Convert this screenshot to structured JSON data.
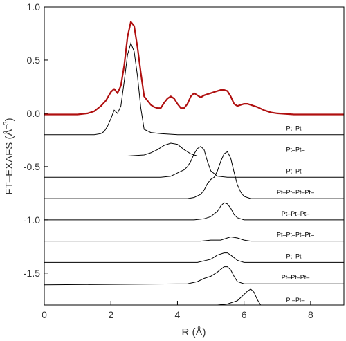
{
  "chart_data": {
    "type": "line",
    "xlabel": "R (Å)",
    "ylabel": "FT–EXAFS (Å",
    "ylabel_sup": "–3",
    "ylabel_close": ")",
    "xlim": [
      0,
      9
    ],
    "ylim": [
      -1.8,
      1.0
    ],
    "xticks": [
      0,
      2,
      4,
      6,
      8
    ],
    "xtick_labels": [
      "0",
      "2",
      "4",
      "6",
      "8"
    ],
    "yticks": [
      1.0,
      0.5,
      0.0,
      -0.5,
      -1.0,
      -1.5
    ],
    "ytick_labels": [
      "1.0",
      "0.5",
      "0.0",
      "-0.5",
      "-1.0",
      "-1.5"
    ],
    "grid": false,
    "colors": {
      "total": "#b01010",
      "component": "#000000",
      "axis": "#000000"
    },
    "total": {
      "points": [
        [
          0.0,
          -0.01
        ],
        [
          0.5,
          -0.01
        ],
        [
          1.0,
          -0.01
        ],
        [
          1.3,
          0.0
        ],
        [
          1.5,
          0.02
        ],
        [
          1.7,
          0.07
        ],
        [
          1.85,
          0.12
        ],
        [
          2.0,
          0.2
        ],
        [
          2.1,
          0.23
        ],
        [
          2.2,
          0.19
        ],
        [
          2.3,
          0.26
        ],
        [
          2.4,
          0.45
        ],
        [
          2.5,
          0.72
        ],
        [
          2.6,
          0.86
        ],
        [
          2.7,
          0.82
        ],
        [
          2.8,
          0.62
        ],
        [
          2.9,
          0.38
        ],
        [
          3.0,
          0.16
        ],
        [
          3.1,
          0.12
        ],
        [
          3.2,
          0.08
        ],
        [
          3.3,
          0.06
        ],
        [
          3.4,
          0.05
        ],
        [
          3.5,
          0.05
        ],
        [
          3.6,
          0.1
        ],
        [
          3.7,
          0.14
        ],
        [
          3.8,
          0.16
        ],
        [
          3.9,
          0.14
        ],
        [
          4.0,
          0.09
        ],
        [
          4.1,
          0.05
        ],
        [
          4.2,
          0.05
        ],
        [
          4.3,
          0.09
        ],
        [
          4.4,
          0.16
        ],
        [
          4.5,
          0.19
        ],
        [
          4.6,
          0.17
        ],
        [
          4.7,
          0.15
        ],
        [
          4.8,
          0.17
        ],
        [
          4.9,
          0.18
        ],
        [
          5.0,
          0.19
        ],
        [
          5.1,
          0.2
        ],
        [
          5.2,
          0.21
        ],
        [
          5.3,
          0.22
        ],
        [
          5.4,
          0.22
        ],
        [
          5.5,
          0.21
        ],
        [
          5.6,
          0.16
        ],
        [
          5.7,
          0.09
        ],
        [
          5.8,
          0.07
        ],
        [
          5.9,
          0.08
        ],
        [
          6.0,
          0.09
        ],
        [
          6.1,
          0.09
        ],
        [
          6.2,
          0.08
        ],
        [
          6.3,
          0.07
        ],
        [
          6.4,
          0.06
        ],
        [
          6.6,
          0.03
        ],
        [
          6.8,
          0.01
        ],
        [
          7.0,
          0.0
        ],
        [
          7.5,
          -0.01
        ],
        [
          8.0,
          -0.01
        ],
        [
          9.0,
          -0.01
        ]
      ]
    },
    "components": [
      {
        "label": "Pt–Pt–",
        "baseline": -0.2,
        "points": [
          [
            0.0,
            -0.2
          ],
          [
            1.5,
            -0.2
          ],
          [
            1.7,
            -0.19
          ],
          [
            1.8,
            -0.17
          ],
          [
            1.9,
            -0.12
          ],
          [
            2.0,
            -0.05
          ],
          [
            2.1,
            0.03
          ],
          [
            2.2,
            0.0
          ],
          [
            2.3,
            0.07
          ],
          [
            2.4,
            0.3
          ],
          [
            2.5,
            0.55
          ],
          [
            2.6,
            0.66
          ],
          [
            2.7,
            0.58
          ],
          [
            2.8,
            0.35
          ],
          [
            2.9,
            0.05
          ],
          [
            3.0,
            -0.15
          ],
          [
            3.2,
            -0.18
          ],
          [
            3.5,
            -0.19
          ],
          [
            4.0,
            -0.2
          ],
          [
            9.0,
            -0.2
          ]
        ]
      },
      {
        "label": "Pt–Pt–",
        "baseline": -0.4,
        "points": [
          [
            0.0,
            -0.4
          ],
          [
            2.5,
            -0.4
          ],
          [
            3.0,
            -0.39
          ],
          [
            3.2,
            -0.37
          ],
          [
            3.4,
            -0.34
          ],
          [
            3.6,
            -0.3
          ],
          [
            3.8,
            -0.28
          ],
          [
            4.0,
            -0.29
          ],
          [
            4.2,
            -0.34
          ],
          [
            4.4,
            -0.38
          ],
          [
            4.6,
            -0.4
          ],
          [
            9.0,
            -0.4
          ]
        ]
      },
      {
        "label": "Pt–Pt–",
        "baseline": -0.6,
        "points": [
          [
            0.0,
            -0.6
          ],
          [
            3.5,
            -0.6
          ],
          [
            3.8,
            -0.59
          ],
          [
            4.0,
            -0.56
          ],
          [
            4.2,
            -0.53
          ],
          [
            4.3,
            -0.5
          ],
          [
            4.4,
            -0.45
          ],
          [
            4.5,
            -0.38
          ],
          [
            4.6,
            -0.33
          ],
          [
            4.7,
            -0.31
          ],
          [
            4.8,
            -0.34
          ],
          [
            4.9,
            -0.45
          ],
          [
            5.0,
            -0.54
          ],
          [
            5.2,
            -0.59
          ],
          [
            5.5,
            -0.6
          ],
          [
            9.0,
            -0.6
          ]
        ]
      },
      {
        "label": "Pt–Pt–Pt–Pt–",
        "baseline": -0.8,
        "points": [
          [
            0.0,
            -0.8
          ],
          [
            4.3,
            -0.8
          ],
          [
            4.5,
            -0.79
          ],
          [
            4.7,
            -0.76
          ],
          [
            4.8,
            -0.72
          ],
          [
            4.9,
            -0.66
          ],
          [
            5.0,
            -0.62
          ],
          [
            5.1,
            -0.6
          ],
          [
            5.2,
            -0.54
          ],
          [
            5.3,
            -0.45
          ],
          [
            5.4,
            -0.38
          ],
          [
            5.5,
            -0.36
          ],
          [
            5.6,
            -0.42
          ],
          [
            5.7,
            -0.55
          ],
          [
            5.8,
            -0.67
          ],
          [
            5.9,
            -0.74
          ],
          [
            6.0,
            -0.78
          ],
          [
            6.2,
            -0.8
          ],
          [
            9.0,
            -0.8
          ]
        ]
      },
      {
        "label": "Pt–Pt–Pt–",
        "baseline": -1.0,
        "points": [
          [
            0.0,
            -1.0
          ],
          [
            4.5,
            -1.0
          ],
          [
            4.8,
            -0.99
          ],
          [
            5.0,
            -0.97
          ],
          [
            5.2,
            -0.92
          ],
          [
            5.3,
            -0.87
          ],
          [
            5.4,
            -0.84
          ],
          [
            5.5,
            -0.85
          ],
          [
            5.6,
            -0.89
          ],
          [
            5.7,
            -0.95
          ],
          [
            5.8,
            -0.98
          ],
          [
            6.0,
            -1.0
          ],
          [
            9.0,
            -1.0
          ]
        ]
      },
      {
        "label": "Pt–Pt–Pt–Pt–",
        "baseline": -1.2,
        "points": [
          [
            0.0,
            -1.2
          ],
          [
            4.7,
            -1.2
          ],
          [
            5.0,
            -1.19
          ],
          [
            5.3,
            -1.19
          ],
          [
            5.5,
            -1.17
          ],
          [
            5.6,
            -1.16
          ],
          [
            5.8,
            -1.17
          ],
          [
            6.0,
            -1.19
          ],
          [
            6.2,
            -1.2
          ],
          [
            9.0,
            -1.2
          ]
        ]
      },
      {
        "label": "Pt–Pt–",
        "baseline": -1.4,
        "points": [
          [
            0.0,
            -1.4
          ],
          [
            4.6,
            -1.4
          ],
          [
            5.0,
            -1.37
          ],
          [
            5.2,
            -1.33
          ],
          [
            5.4,
            -1.31
          ],
          [
            5.5,
            -1.31
          ],
          [
            5.6,
            -1.33
          ],
          [
            5.8,
            -1.38
          ],
          [
            6.0,
            -1.4
          ],
          [
            9.0,
            -1.4
          ]
        ]
      },
      {
        "label": "Pt–Pt–Pt–",
        "baseline": -1.6,
        "points": [
          [
            0.0,
            -1.61
          ],
          [
            4.3,
            -1.6
          ],
          [
            4.6,
            -1.58
          ],
          [
            4.8,
            -1.55
          ],
          [
            5.0,
            -1.53
          ],
          [
            5.2,
            -1.49
          ],
          [
            5.4,
            -1.44
          ],
          [
            5.5,
            -1.44
          ],
          [
            5.6,
            -1.47
          ],
          [
            5.7,
            -1.53
          ],
          [
            5.8,
            -1.58
          ],
          [
            6.0,
            -1.6
          ],
          [
            9.0,
            -1.6
          ]
        ]
      },
      {
        "label": "Pt–Pt–",
        "baseline": null,
        "points": [
          [
            5.2,
            -1.8
          ],
          [
            5.5,
            -1.79
          ],
          [
            5.8,
            -1.76
          ],
          [
            6.0,
            -1.7
          ],
          [
            6.1,
            -1.67
          ],
          [
            6.2,
            -1.65
          ],
          [
            6.3,
            -1.68
          ],
          [
            6.4,
            -1.75
          ],
          [
            6.5,
            -1.8
          ]
        ]
      }
    ]
  }
}
